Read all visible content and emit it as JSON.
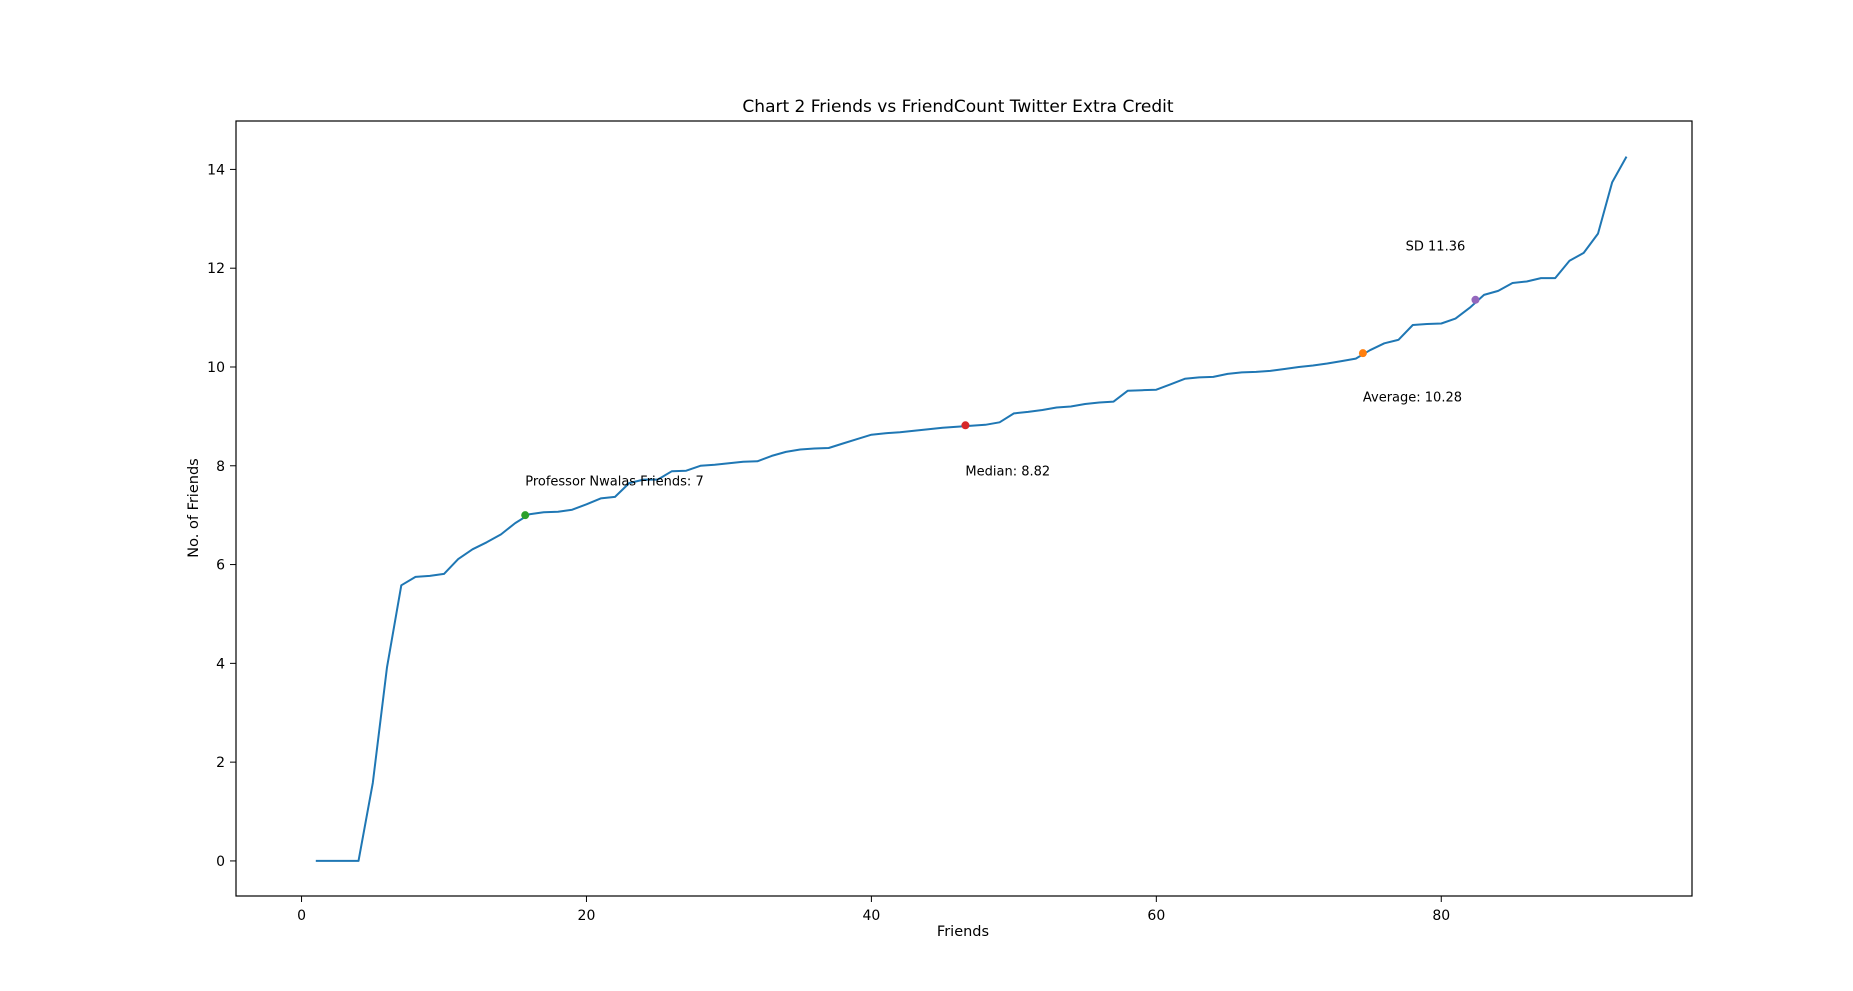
{
  "chart_data": {
    "type": "line",
    "title": "Chart 2 Friends vs FriendCount Twitter Extra Credit",
    "xlabel": "Friends",
    "ylabel": "No. of Friends",
    "xlim": [
      -4.6,
      97.6
    ],
    "ylim": [
      -0.71,
      14.98
    ],
    "xticks": [
      0,
      20,
      40,
      60,
      80
    ],
    "yticks": [
      0,
      2,
      4,
      6,
      8,
      10,
      12,
      14
    ],
    "grid": false,
    "series": [
      {
        "color": "#1f77b4",
        "x": [
          1,
          2,
          3,
          4,
          5,
          6,
          7,
          8,
          9,
          10,
          11,
          12,
          13,
          14,
          15,
          16,
          17,
          18,
          19,
          20,
          21,
          22,
          23,
          24,
          25,
          26,
          27,
          28,
          29,
          30,
          31,
          32,
          33,
          34,
          35,
          36,
          37,
          38,
          39,
          40,
          41,
          42,
          43,
          44,
          45,
          46,
          47,
          48,
          49,
          50,
          51,
          52,
          53,
          54,
          55,
          56,
          57,
          58,
          59,
          60,
          61,
          62,
          63,
          64,
          65,
          66,
          67,
          68,
          69,
          70,
          71,
          72,
          73,
          74,
          75,
          76,
          77,
          78,
          79,
          80,
          81,
          82,
          83,
          84,
          85,
          86,
          87,
          88,
          89,
          90,
          91,
          92,
          93
        ],
        "y": [
          0.0,
          0.0,
          0.0,
          0.0,
          1.58,
          3.92,
          5.58,
          5.75,
          5.77,
          5.81,
          6.11,
          6.31,
          6.45,
          6.61,
          6.84,
          7.02,
          7.06,
          7.07,
          7.11,
          7.22,
          7.34,
          7.37,
          7.65,
          7.72,
          7.72,
          7.89,
          7.9,
          8.0,
          8.02,
          8.05,
          8.08,
          8.09,
          8.2,
          8.28,
          8.33,
          8.35,
          8.36,
          8.45,
          8.54,
          8.63,
          8.66,
          8.68,
          8.71,
          8.74,
          8.77,
          8.79,
          8.81,
          8.83,
          8.88,
          9.06,
          9.09,
          9.13,
          9.18,
          9.2,
          9.25,
          9.28,
          9.3,
          9.52,
          9.53,
          9.54,
          9.65,
          9.76,
          9.79,
          9.8,
          9.86,
          9.89,
          9.9,
          9.92,
          9.96,
          10.0,
          10.03,
          10.07,
          10.12,
          10.17,
          10.34,
          10.48,
          10.55,
          10.85,
          10.87,
          10.88,
          10.98,
          11.2,
          11.46,
          11.54,
          11.7,
          11.73,
          11.8,
          11.8,
          12.15,
          12.31,
          12.7,
          13.74,
          14.26
        ]
      }
    ],
    "markers": [
      {
        "x": 15.7,
        "y": 7.0,
        "color": "#2ca02c",
        "label": "Professor Nwalas Friends: 7",
        "label_x": 15.7,
        "label_y": 7.6
      },
      {
        "x": 46.6,
        "y": 8.82,
        "color": "#d62728",
        "label": "Median: 8.82",
        "label_x": 46.6,
        "label_y": 7.8
      },
      {
        "x": 74.5,
        "y": 10.28,
        "color": "#ff7f0e",
        "label": "Average: 10.28",
        "label_x": 74.5,
        "label_y": 9.3
      },
      {
        "x": 82.4,
        "y": 11.36,
        "color": "#9467bd",
        "label": "SD 11.36",
        "label_x": 77.5,
        "label_y": 12.36
      }
    ]
  }
}
